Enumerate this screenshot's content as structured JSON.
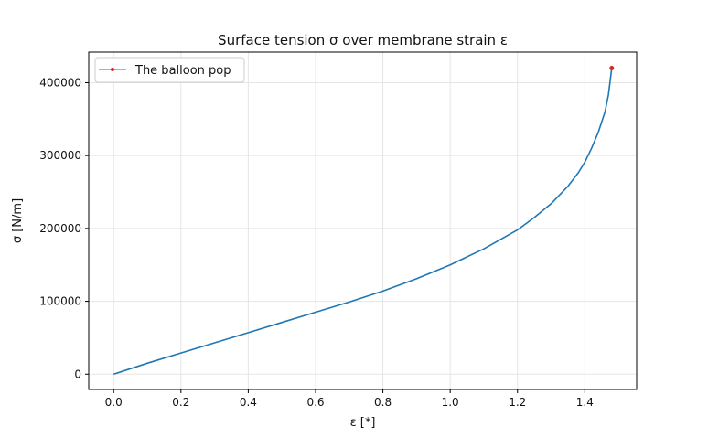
{
  "chart_data": {
    "type": "line",
    "title": "Surface tension σ over membrane strain ε",
    "xlabel": "ε [*]",
    "ylabel": "σ  [N/m]",
    "xlim": [
      -0.074,
      1.554
    ],
    "ylim": [
      -21000,
      442000
    ],
    "x_ticks": [
      0.0,
      0.2,
      0.4,
      0.6,
      0.8,
      1.0,
      1.2,
      1.4
    ],
    "x_tick_labels": [
      "0.0",
      "0.2",
      "0.4",
      "0.6",
      "0.8",
      "1.0",
      "1.2",
      "1.4"
    ],
    "y_ticks": [
      0,
      100000,
      200000,
      300000,
      400000
    ],
    "y_tick_labels": [
      "0",
      "100000",
      "200000",
      "300000",
      "400000"
    ],
    "grid": true,
    "legend_position": "top-left",
    "colors": {
      "curve": "#1f77b4",
      "pop_line": "#ff7f0e",
      "pop_marker": "#d62728",
      "grid": "#e5e5e5",
      "axes": "#000000"
    },
    "series": [
      {
        "x": [
          0.0,
          0.1,
          0.2,
          0.3,
          0.4,
          0.5,
          0.6,
          0.7,
          0.8,
          0.9,
          1.0,
          1.1,
          1.2,
          1.25,
          1.3,
          1.35,
          1.38,
          1.4,
          1.42,
          1.44,
          1.46,
          1.47,
          1.48
        ],
        "values": [
          0,
          15000,
          29000,
          43000,
          57000,
          71000,
          85000,
          99000,
          114000,
          131000,
          150000,
          172000,
          198000,
          215000,
          234000,
          258000,
          276000,
          291000,
          310000,
          332000,
          360000,
          383000,
          420000
        ]
      },
      {
        "name": "The balloon pop",
        "x": [
          1.48
        ],
        "values": [
          420000
        ]
      }
    ]
  }
}
